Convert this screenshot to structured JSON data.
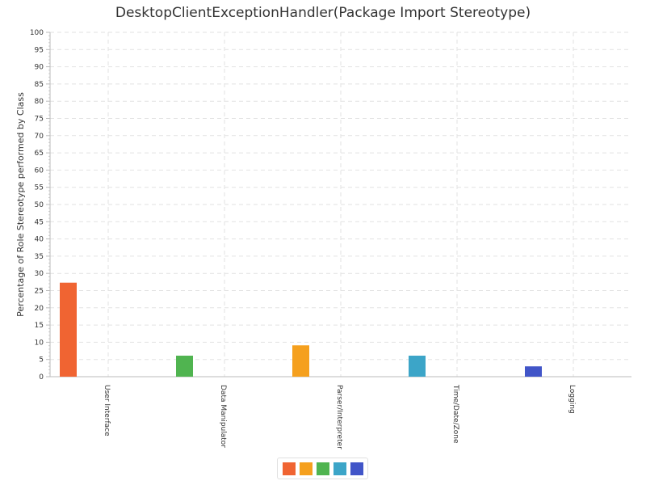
{
  "chart_data": {
    "type": "bar",
    "title": "DesktopClientExceptionHandler(Package Import Stereotype)",
    "xlabel": "",
    "ylabel": "Percentage of Role Stereotype performed by Class",
    "categories": [
      "User Interface",
      "Data Manipulator",
      "Parser/Interpreter",
      "Time/Date/Zone",
      "Logging"
    ],
    "values": [
      27.3,
      6.1,
      9.1,
      6.1,
      3.0
    ],
    "colors": [
      "#f06432",
      "#50b450",
      "#f5a01e",
      "#3ca5c8",
      "#4155c8"
    ],
    "ylim": [
      0,
      100
    ],
    "ytick_step": 5,
    "grid": true,
    "legend": {
      "placement": "bottom-center",
      "swatches": [
        "#f06432",
        "#f5a01e",
        "#50b450",
        "#3ca5c8",
        "#4155c8"
      ]
    }
  }
}
